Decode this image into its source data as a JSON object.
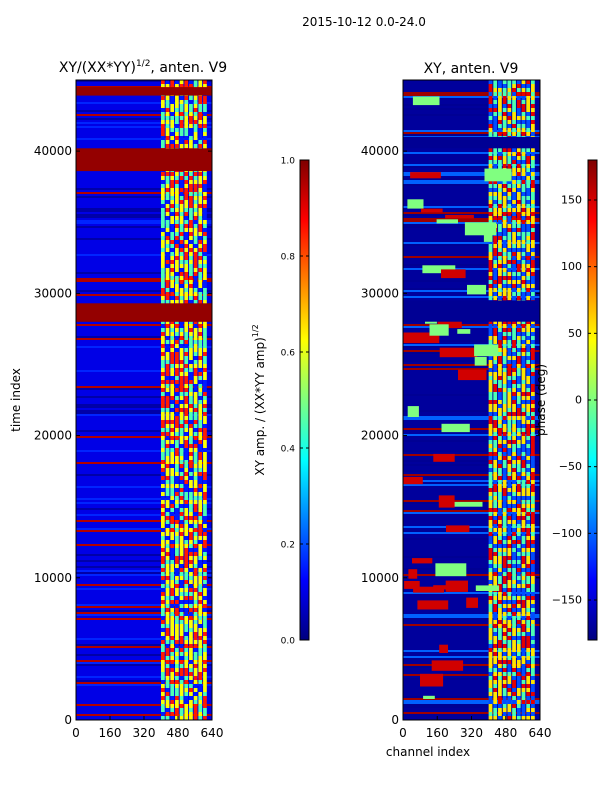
{
  "figure_title": "2015-10-12 0.0-24.0",
  "chart_data": [
    {
      "type": "heatmap",
      "title": "XY/(XX*YY)",
      "title_superscript": "1/2",
      "title_suffix": ", anten. V9",
      "xlabel": "",
      "ylabel": "time index",
      "xlim": [
        0,
        640
      ],
      "ylim": [
        0,
        45000
      ],
      "xticks": [
        0,
        160,
        320,
        480,
        640
      ],
      "yticks": [
        0,
        10000,
        20000,
        30000,
        40000
      ],
      "colorbar": {
        "label": "XY amp. / (XX*YY amp)",
        "label_superscript": "1/2",
        "range": [
          0.0,
          1.0
        ],
        "ticks": [
          "0.0",
          "0.2",
          "0.4",
          "0.6",
          "0.8",
          "1.0"
        ],
        "colormap": "jet"
      },
      "features": {
        "background_value": 0.1,
        "high_band_channels": [
          400,
          620
        ],
        "saturated_time_bands": [
          [
            43900,
            44500
          ],
          [
            38600,
            40200
          ],
          [
            28000,
            29300
          ]
        ]
      }
    },
    {
      "type": "heatmap",
      "title": "XY, anten. V9",
      "xlabel": "channel index",
      "ylabel": "",
      "xlim": [
        0,
        640
      ],
      "ylim": [
        0,
        45000
      ],
      "xticks": [
        0,
        160,
        320,
        480,
        640
      ],
      "yticks": [
        0,
        10000,
        20000,
        30000,
        40000
      ],
      "colorbar": {
        "label": "phase (deg)",
        "range": [
          -180,
          180
        ],
        "ticks": [
          "−150",
          "−100",
          "−50",
          "0",
          "50",
          "100",
          "150"
        ],
        "colormap": "jet"
      },
      "features": {
        "background_value": -170,
        "high_band_channels": [
          400,
          620
        ],
        "dark_time_bands": [
          [
            40200,
            41000
          ],
          [
            28000,
            29500
          ]
        ]
      }
    }
  ]
}
